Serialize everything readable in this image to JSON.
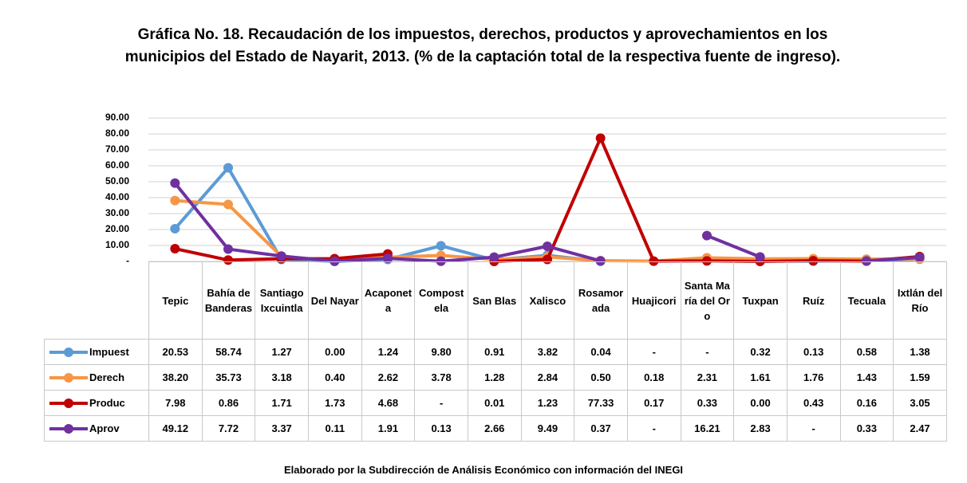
{
  "chart_data": {
    "type": "line",
    "title": "Gráfica No. 18. Recaudación de los impuestos, derechos, productos y aprovechamientos en los municipios del Estado de Nayarit, 2013. (% de la captación total de la respectiva fuente de ingreso).",
    "source": "Elaborado por la Subdirección de Análisis Económico con información del INEGI",
    "categories": [
      "Tepic",
      "Bahía de Banderas",
      "Santiago Ixcuintla",
      "Del Nayar",
      "Acaponeta",
      "Compostela",
      "San Blas",
      "Xalisco",
      "Rosamorada",
      "Huajicori",
      "Santa María del Oro",
      "Tuxpan",
      "Ruíz",
      "Tecuala",
      "Ixtlán del Río"
    ],
    "series": [
      {
        "name": "Impuest",
        "color": "#5b9bd5",
        "values": [
          20.53,
          58.74,
          1.27,
          0,
          1.24,
          9.8,
          0.91,
          3.82,
          0.04,
          null,
          null,
          0.32,
          0.13,
          0.58,
          1.38
        ],
        "value_labels": [
          "20.53",
          "58.74",
          "1.27",
          "0.00",
          "1.24",
          "9.80",
          "0.91",
          "3.82",
          "0.04",
          "-",
          "-",
          "0.32",
          "0.13",
          "0.58",
          "1.38"
        ]
      },
      {
        "name": "Derech",
        "color": "#f79646",
        "values": [
          38.2,
          35.73,
          3.18,
          0.4,
          2.62,
          3.78,
          1.28,
          2.84,
          0.5,
          0.18,
          2.31,
          1.61,
          1.76,
          1.43,
          1.59
        ],
        "value_labels": [
          "38.20",
          "35.73",
          "3.18",
          "0.40",
          "2.62",
          "3.78",
          "1.28",
          "2.84",
          "0.50",
          "0.18",
          "2.31",
          "1.61",
          "1.76",
          "1.43",
          "1.59"
        ]
      },
      {
        "name": "Produc",
        "color": "#c00000",
        "values": [
          7.98,
          0.86,
          1.71,
          1.73,
          4.68,
          null,
          0.01,
          1.23,
          77.33,
          0.17,
          0.33,
          0,
          0.43,
          0.16,
          3.05
        ],
        "value_labels": [
          "7.98",
          "0.86",
          "1.71",
          "1.73",
          "4.68",
          "-",
          "0.01",
          "1.23",
          "77.33",
          "0.17",
          "0.33",
          "0.00",
          "0.43",
          "0.16",
          "3.05"
        ]
      },
      {
        "name": "Aprov",
        "color": "#7030a0",
        "values": [
          49.12,
          7.72,
          3.37,
          0.11,
          1.91,
          0.13,
          2.66,
          9.49,
          0.37,
          null,
          16.21,
          2.83,
          null,
          0.33,
          2.47
        ],
        "value_labels": [
          "49.12",
          "7.72",
          "3.37",
          "0.11",
          "1.91",
          "0.13",
          "2.66",
          "9.49",
          "0.37",
          "-",
          "16.21",
          "2.83",
          "-",
          "0.33",
          "2.47"
        ]
      }
    ],
    "ylim": [
      0,
      90
    ],
    "yticks": [
      {
        "value": 0,
        "label": "-"
      },
      {
        "value": 10,
        "label": "10.00"
      },
      {
        "value": 20,
        "label": "20.00"
      },
      {
        "value": 30,
        "label": "30.00"
      },
      {
        "value": 40,
        "label": "40.00"
      },
      {
        "value": 50,
        "label": "50.00"
      },
      {
        "value": 60,
        "label": "60.00"
      },
      {
        "value": 70,
        "label": "70.00"
      },
      {
        "value": 80,
        "label": "80.00"
      },
      {
        "value": 90,
        "label": "90.00"
      }
    ],
    "grid": true
  }
}
